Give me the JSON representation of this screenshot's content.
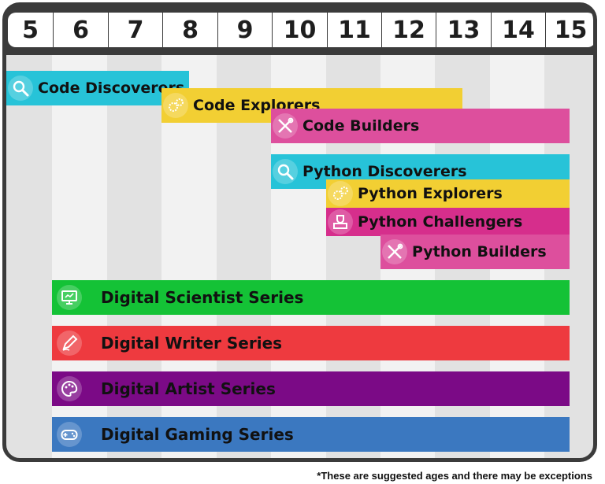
{
  "chart_data": {
    "type": "bar",
    "subtype": "gantt-range",
    "ages": [
      "5",
      "6",
      "7",
      "8",
      "9",
      "10",
      "11",
      "12",
      "13",
      "14",
      "15"
    ],
    "courses": [
      {
        "name": "Code Discoverers",
        "start": 5,
        "end": 8.5,
        "color": "#27c3d8",
        "icon": "magnifier-icon"
      },
      {
        "name": "Code Explorers",
        "start": 8,
        "end": 13.5,
        "color": "#f2cf33",
        "icon": "gears-icon"
      },
      {
        "name": "Code Builders",
        "start": 10,
        "end": 15.5,
        "color": "#dd4f9d",
        "icon": "tools-icon"
      },
      {
        "name": "Python Discoverers",
        "start": 10,
        "end": 15.5,
        "color": "#27c3d8",
        "icon": "magnifier-icon"
      },
      {
        "name": "Python Explorers",
        "start": 11,
        "end": 15.5,
        "color": "#f2cf33",
        "icon": "gears-icon"
      },
      {
        "name": "Python Challengers",
        "start": 11,
        "end": 15.5,
        "color": "#d62e8c",
        "icon": "trophy-icon"
      },
      {
        "name": "Python Builders",
        "start": 12,
        "end": 15.5,
        "color": "#dd4f9d",
        "icon": "tools-icon"
      },
      {
        "name": "Digital Scientist Series",
        "start": 6,
        "end": 15.5,
        "color": "#14c236",
        "icon": "monitor-icon"
      },
      {
        "name": "Digital Writer Series",
        "start": 6,
        "end": 15.5,
        "color": "#ee3a3f",
        "icon": "pen-icon"
      },
      {
        "name": "Digital Artist Series",
        "start": 6,
        "end": 15.5,
        "color": "#7b0a86",
        "icon": "palette-icon"
      },
      {
        "name": "Digital Gaming Series",
        "start": 6,
        "end": 15.5,
        "color": "#3b78c0",
        "icon": "gamepad-icon"
      }
    ]
  },
  "footnote": "*These are suggested ages and there may be exceptions",
  "colors": {
    "frame": "#3b3b3b",
    "stripe_light": "#f2f2f2",
    "stripe_dark": "#e2e2e2"
  }
}
